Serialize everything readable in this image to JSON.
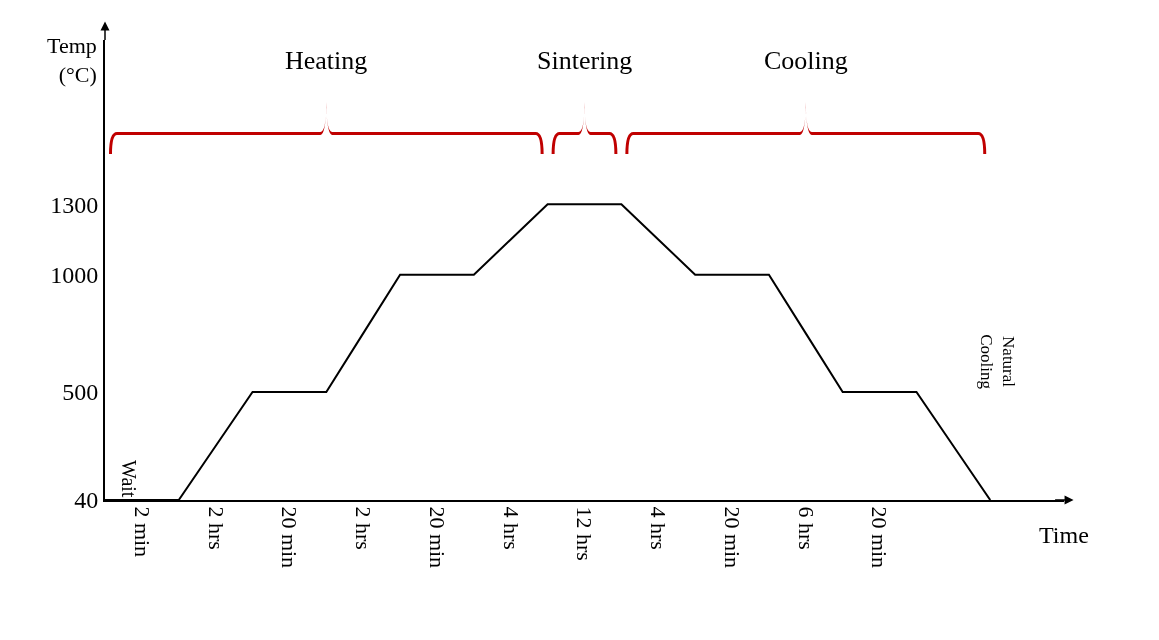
{
  "chart_data": {
    "type": "line",
    "ylabel": "Temp (°C)",
    "xlabel": "Time",
    "categories": [
      null,
      "2 min",
      null,
      "2 hrs",
      null,
      "20 min",
      null,
      "2 hrs",
      null,
      "20 min",
      null,
      "4 hrs",
      null,
      "12 hrs",
      null,
      "4 hrs",
      null,
      "20 min",
      null,
      "6 hrs",
      null,
      "20 min",
      null,
      null,
      null
    ],
    "series": [
      {
        "color": "#000000",
        "values": [
          40,
          40,
          40,
          270,
          500,
          500,
          500,
          750,
          1000,
          1000,
          1000,
          1150,
          1300,
          1300,
          1300,
          1150,
          1000,
          1000,
          1000,
          750,
          500,
          500,
          500,
          270,
          40
        ]
      }
    ],
    "ylim": [
      40,
      2000
    ],
    "yticks": [
      40,
      500,
      1000,
      1300
    ],
    "marker": "none",
    "line_style": "solid",
    "grid": false,
    "annotations": [
      "Heating",
      "Sintering",
      "Cooling",
      {
        "text": "Wait",
        "x": "2 min",
        "y": 40
      },
      "Natural Cooling"
    ]
  }
}
